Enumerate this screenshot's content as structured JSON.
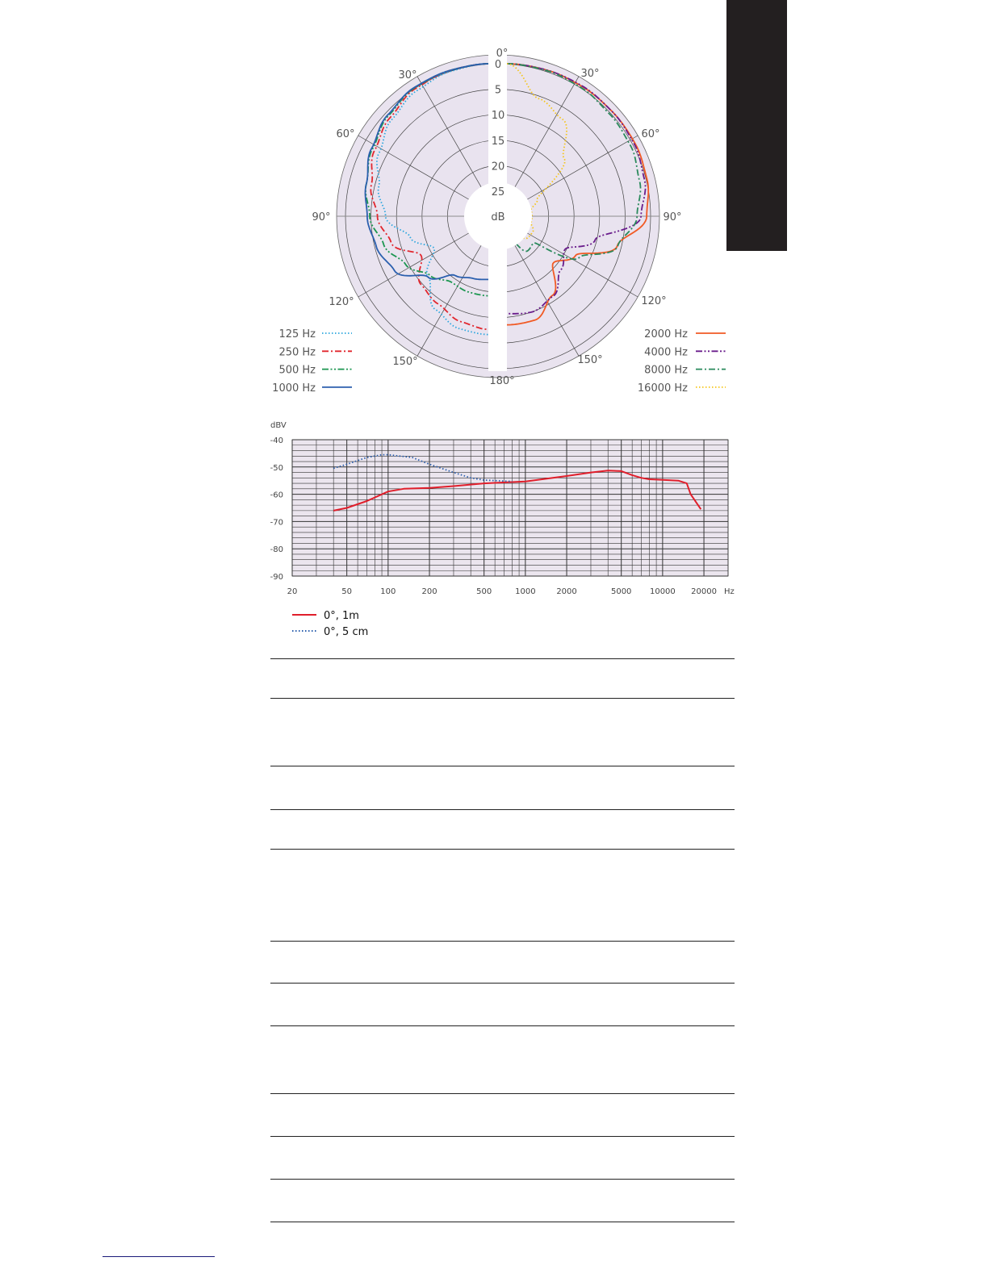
{
  "polar_chart": {
    "type": "polar",
    "radial_unit": "dB",
    "radial_ticks": [
      "0",
      "5",
      "10",
      "15",
      "20",
      "25"
    ],
    "radial_range": [
      0,
      25
    ],
    "angle_labels": {
      "top": "0°",
      "bottom": "180°",
      "left": [
        "30°",
        "60°",
        "90°",
        "120°",
        "150°"
      ],
      "right": [
        "30°",
        "60°",
        "90°",
        "120°",
        "150°"
      ]
    },
    "background": "#e9e3ef",
    "angles_deg": [
      0,
      15,
      30,
      45,
      60,
      75,
      90,
      105,
      120,
      135,
      150,
      165,
      180
    ],
    "series": [
      {
        "name": "125 Hz",
        "side": "left",
        "color": "#2ba6de",
        "style": "dotted",
        "attenuation_db": [
          0,
          0.5,
          1.5,
          3,
          5,
          7.5,
          9.6,
          13.9,
          17.4,
          13,
          8.8,
          7.1,
          6.7
        ]
      },
      {
        "name": "250 Hz",
        "side": "left",
        "color": "#e1262d",
        "style": "dash-dot",
        "attenuation_db": [
          0,
          0.3,
          1,
          2.5,
          4,
          6,
          8,
          10,
          14.5,
          11,
          10,
          8.5,
          7.7
        ]
      },
      {
        "name": "500 Hz",
        "side": "left",
        "color": "#1b9650",
        "style": "dash-dot-dot",
        "attenuation_db": [
          0,
          0.3,
          0.8,
          2,
          3.5,
          5,
          6.5,
          8.5,
          11,
          13.5,
          15,
          14.5,
          14.3
        ]
      },
      {
        "name": "1000 Hz",
        "side": "left",
        "color": "#2b5fae",
        "style": "solid",
        "attenuation_db": [
          0,
          0.3,
          0.7,
          1.8,
          3.3,
          5,
          6,
          7,
          8.5,
          13,
          16.5,
          17.3,
          17.5
        ]
      },
      {
        "name": "2000 Hz",
        "side": "right",
        "color": "#f15a24",
        "style": "solid",
        "attenuation_db": [
          0,
          0.2,
          0.5,
          0.8,
          1,
          1.5,
          2.5,
          7.5,
          14.4,
          17,
          12,
          8.8,
          8.6
        ]
      },
      {
        "name": "4000 Hz",
        "side": "right",
        "color": "#6a1d8c",
        "style": "dash-dot-dot",
        "attenuation_db": [
          0,
          0.2,
          0.4,
          0.8,
          1.2,
          2,
          3.6,
          12,
          16.8,
          15,
          11.8,
          10.5,
          10.8
        ]
      },
      {
        "name": "8000 Hz",
        "side": "right",
        "color": "#2a8a5c",
        "style": "dash-dot",
        "attenuation_db": [
          0,
          0.3,
          0.8,
          1.5,
          2,
          3,
          4.4,
          7.4,
          13.6,
          22.5,
          22,
          24.5,
          25
        ]
      },
      {
        "name": "16000 Hz",
        "side": "right",
        "color": "#f5c518",
        "style": "dotted",
        "attenuation_db": [
          0,
          6,
          8,
          14,
          23,
          25,
          25,
          25,
          24,
          24,
          25,
          25,
          24
        ]
      }
    ]
  },
  "chart_data": {
    "type": "line",
    "title": "",
    "ylabel": "dBV",
    "xlabel": "Hz",
    "x_scale": "log",
    "xlim": [
      20,
      30000
    ],
    "ylim": [
      -90,
      -40
    ],
    "x_ticks": [
      "20",
      "50",
      "100",
      "200",
      "500",
      "1000",
      "2000",
      "5000",
      "10000",
      "20000"
    ],
    "y_ticks": [
      "-40",
      "-50",
      "-60",
      "-70",
      "-80",
      "-90"
    ],
    "grid": true,
    "background": "#ebe5ee",
    "legend_position": "bottom-left",
    "series": [
      {
        "name": "0°, 1m",
        "color": "#e01e2b",
        "style": "solid",
        "x": [
          40,
          50,
          70,
          100,
          130,
          200,
          300,
          500,
          1000,
          2000,
          3000,
          4000,
          5000,
          6000,
          7000,
          8000,
          10000,
          13000,
          15000,
          16000,
          19000
        ],
        "y": [
          -66,
          -65,
          -62.5,
          -59,
          -58,
          -57.7,
          -57,
          -56,
          -55.3,
          -53.3,
          -52,
          -51.3,
          -51.5,
          -53,
          -54,
          -54.5,
          -54.7,
          -55,
          -56,
          -60,
          -65.5
        ]
      },
      {
        "name": "0°, 5 cm",
        "color": "#2b5fae",
        "style": "dotted",
        "x": [
          40,
          50,
          70,
          90,
          100,
          150,
          200,
          300,
          400,
          500,
          800
        ],
        "y": [
          -50.5,
          -49,
          -46.5,
          -45.5,
          -45.5,
          -46.5,
          -49,
          -52,
          -54,
          -54.8,
          -55.3
        ]
      }
    ]
  }
}
